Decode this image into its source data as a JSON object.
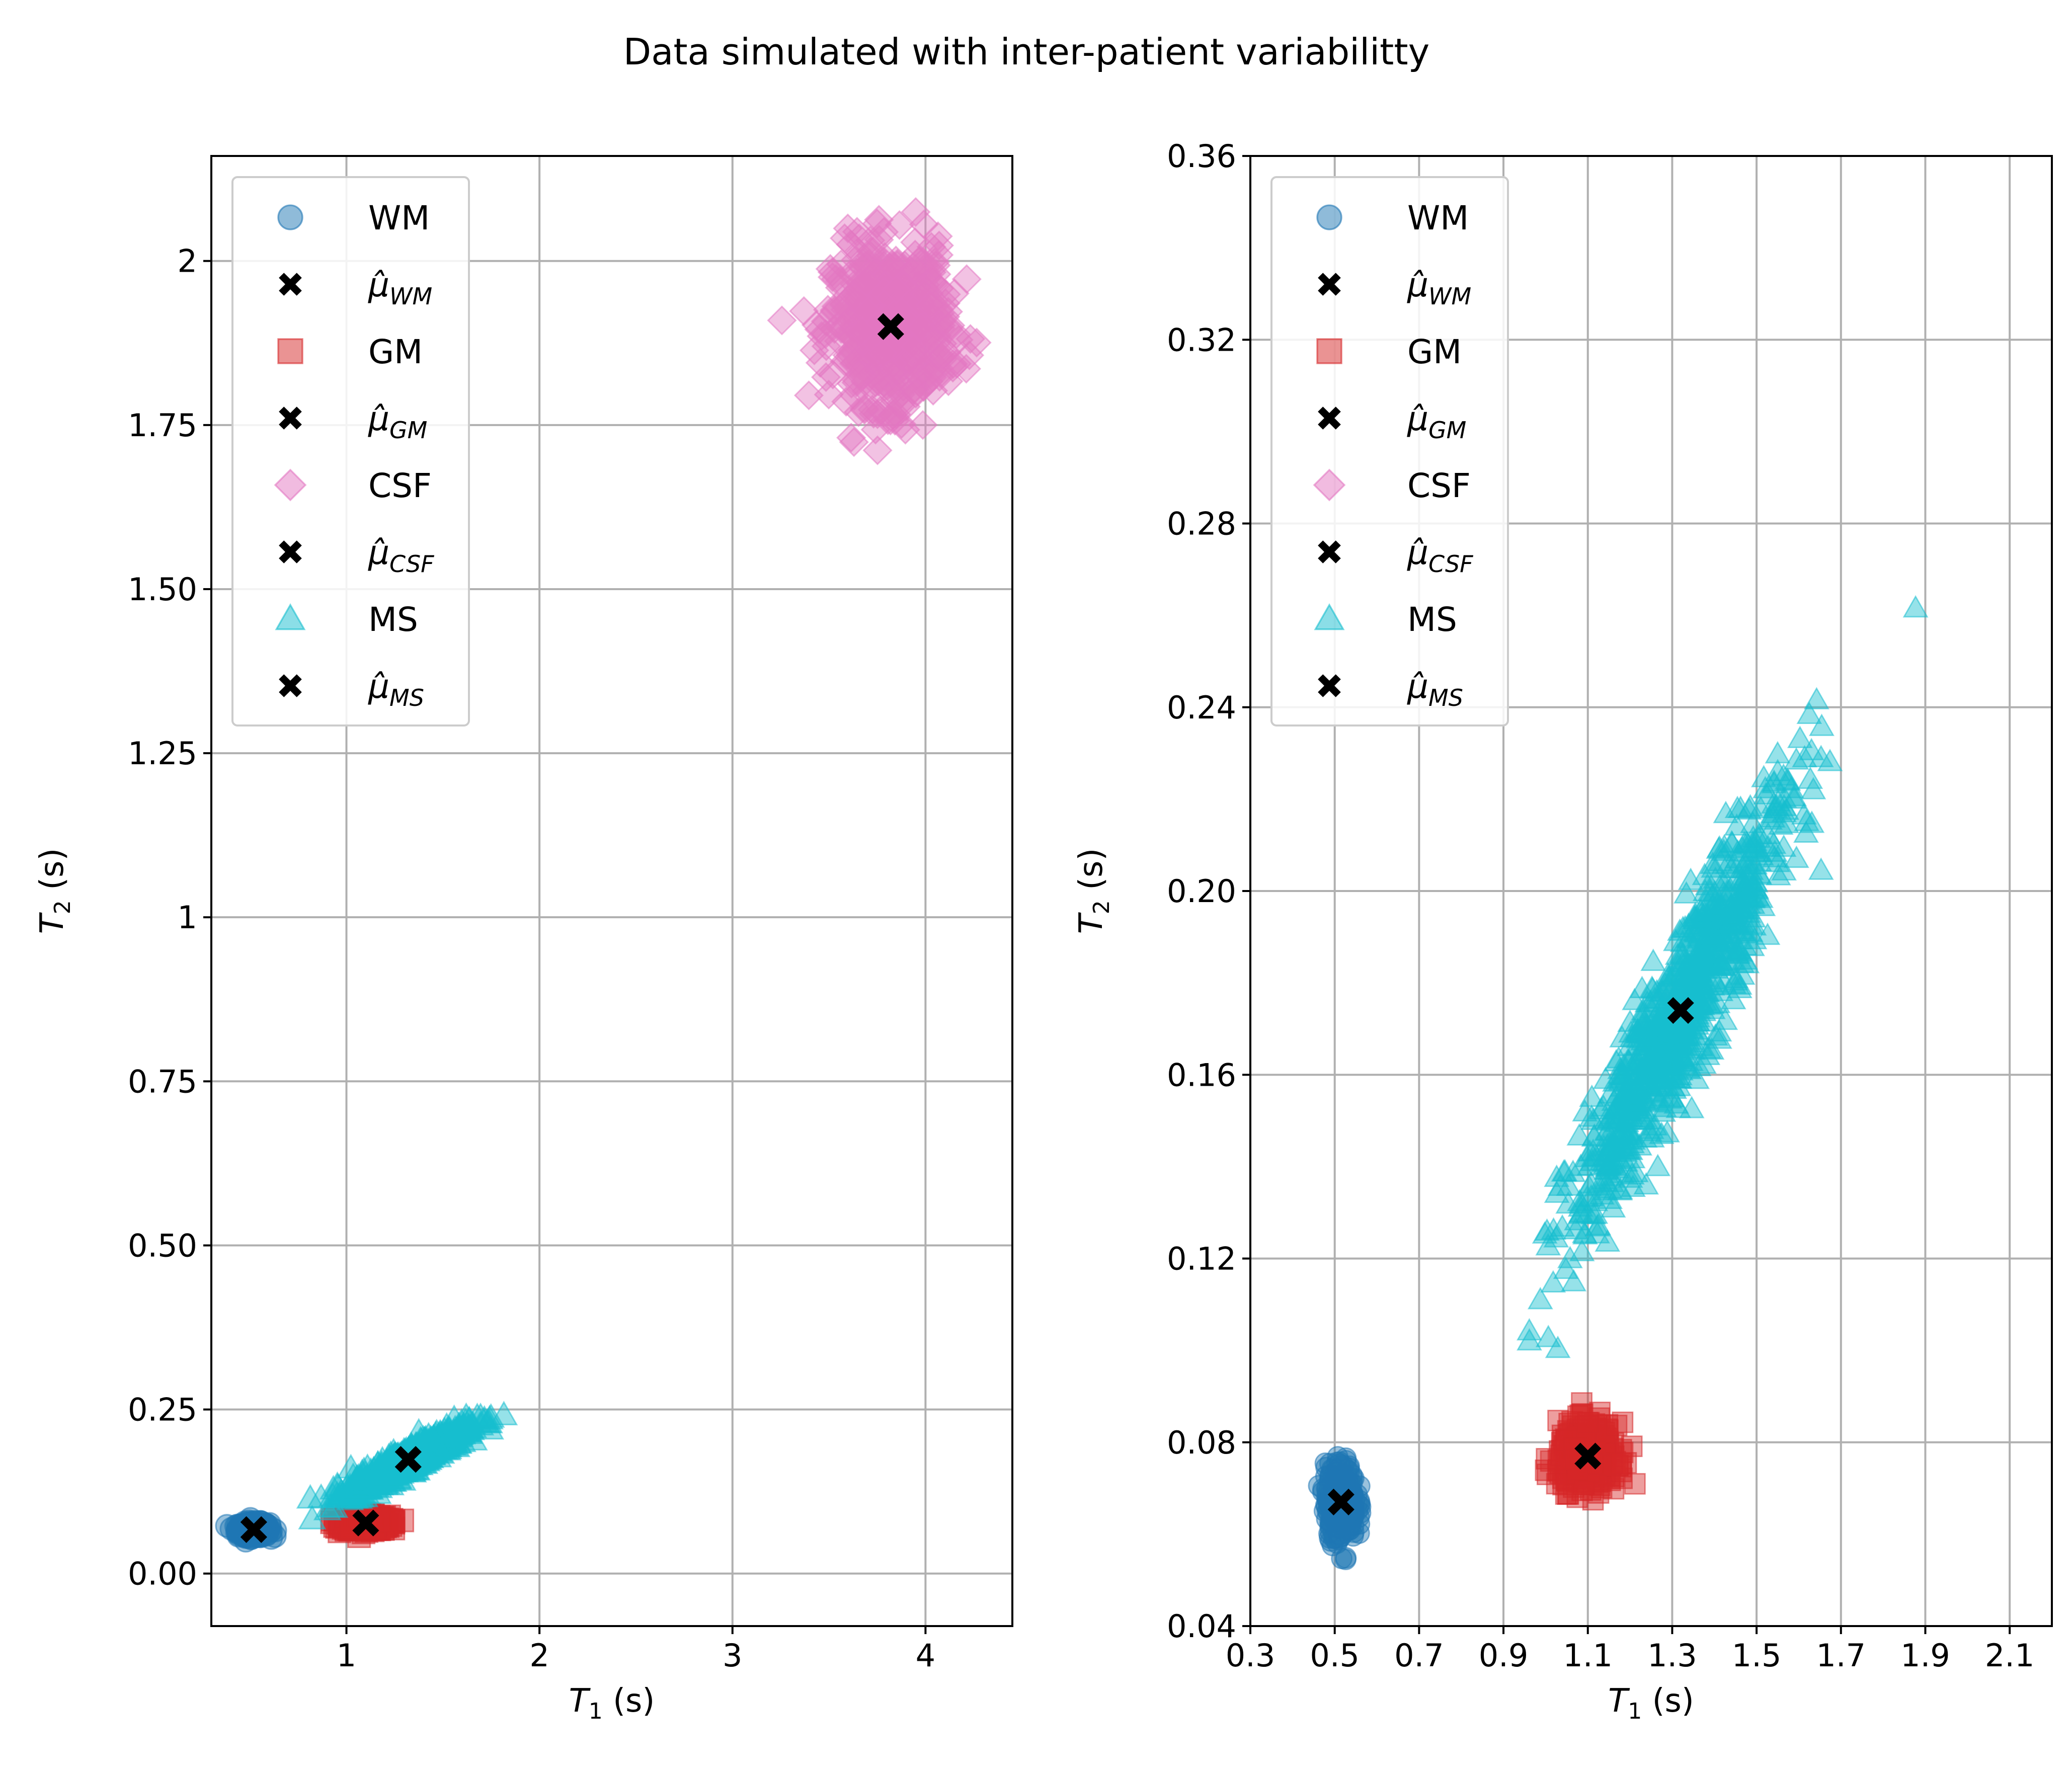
{
  "figure_title": "Data simulated with inter-patient variabilitty",
  "colors": {
    "WM": "#1f77b4",
    "GM": "#d62728",
    "CSF": "#e377c2",
    "MS": "#17becf",
    "mean": "#000000",
    "grid": "#b0b0b0"
  },
  "chart_data": [
    {
      "type": "scatter",
      "panel": "left",
      "title": "",
      "xlabel": "T1 (s)",
      "ylabel": "T2 (s)",
      "xlim": [
        0.3,
        4.45
      ],
      "ylim": [
        -0.08,
        2.16
      ],
      "xticks": [
        1,
        2,
        3,
        4
      ],
      "yticks": [
        0.0,
        0.25,
        0.5,
        0.75,
        1.0,
        1.25,
        1.5,
        1.75,
        2.0
      ],
      "grid": true,
      "legend_placement": "upper-left",
      "series": [
        {
          "name": "WM",
          "marker": "circle",
          "center": [
            0.52,
            0.067
          ],
          "spread": [
            0.04,
            0.005
          ],
          "corr": 0.0,
          "n": 400
        },
        {
          "name": "GM",
          "marker": "square",
          "center": [
            1.1,
            0.077
          ],
          "spread": [
            0.06,
            0.005
          ],
          "corr": 0.0,
          "n": 400
        },
        {
          "name": "CSF",
          "marker": "diamond",
          "center": [
            3.82,
            1.9
          ],
          "spread": [
            0.15,
            0.06
          ],
          "corr": 0.0,
          "n": 600
        },
        {
          "name": "MS",
          "marker": "triangle",
          "center": [
            1.32,
            0.174
          ],
          "spread": [
            0.15,
            0.025
          ],
          "corr": 0.93,
          "n": 900
        }
      ],
      "means": [
        {
          "name": "μ̂_WM",
          "x": 0.52,
          "y": 0.067
        },
        {
          "name": "μ̂_GM",
          "x": 1.1,
          "y": 0.077
        },
        {
          "name": "μ̂_CSF",
          "x": 3.82,
          "y": 1.9
        },
        {
          "name": "μ̂_MS",
          "x": 1.32,
          "y": 0.174
        }
      ],
      "legend": [
        {
          "label": "WM",
          "sub": "",
          "marker": "circle",
          "color": "#1f77b4"
        },
        {
          "label": "μ̂",
          "sub": "WM",
          "marker": "x",
          "color": "#000000"
        },
        {
          "label": "GM",
          "sub": "",
          "marker": "square",
          "color": "#d62728"
        },
        {
          "label": "μ̂",
          "sub": "GM",
          "marker": "x",
          "color": "#000000"
        },
        {
          "label": "CSF",
          "sub": "",
          "marker": "diamond",
          "color": "#e377c2"
        },
        {
          "label": "μ̂",
          "sub": "CSF",
          "marker": "x",
          "color": "#000000"
        },
        {
          "label": "MS",
          "sub": "",
          "marker": "triangle",
          "color": "#17becf"
        },
        {
          "label": "μ̂",
          "sub": "MS",
          "marker": "x",
          "color": "#000000"
        }
      ]
    },
    {
      "type": "scatter",
      "panel": "right",
      "title": "",
      "xlabel": "T1 (s)",
      "ylabel": "T2 (s)",
      "xlim": [
        0.3,
        2.2
      ],
      "ylim": [
        0.04,
        0.36
      ],
      "xticks": [
        0.3,
        0.5,
        0.7,
        0.9,
        1.1,
        1.3,
        1.5,
        1.7,
        1.9,
        2.1
      ],
      "yticks": [
        0.04,
        0.08,
        0.12,
        0.16,
        0.2,
        0.24,
        0.28,
        0.32,
        0.36
      ],
      "grid": true,
      "legend_placement": "upper-left",
      "series": [
        {
          "name": "WM",
          "marker": "circle",
          "center": [
            0.515,
            0.067
          ],
          "spread": [
            0.018,
            0.004
          ],
          "corr": 0.0,
          "n": 400
        },
        {
          "name": "GM",
          "marker": "square",
          "center": [
            1.1,
            0.077
          ],
          "spread": [
            0.035,
            0.0035
          ],
          "corr": 0.0,
          "n": 400
        },
        {
          "name": "CSF",
          "marker": "diamond",
          "center": [
            3.82,
            1.9
          ],
          "spread": [
            0.15,
            0.06
          ],
          "corr": 0.0,
          "n": 0
        },
        {
          "name": "MS",
          "marker": "triangle",
          "center": [
            1.32,
            0.174
          ],
          "spread": [
            0.13,
            0.024
          ],
          "corr": 0.93,
          "n": 900
        }
      ],
      "means": [
        {
          "name": "μ̂_WM",
          "x": 0.515,
          "y": 0.067
        },
        {
          "name": "μ̂_GM",
          "x": 1.1,
          "y": 0.077
        },
        {
          "name": "μ̂_MS",
          "x": 1.32,
          "y": 0.174
        }
      ],
      "legend": [
        {
          "label": "WM",
          "sub": "",
          "marker": "circle",
          "color": "#1f77b4"
        },
        {
          "label": "μ̂",
          "sub": "WM",
          "marker": "x",
          "color": "#000000"
        },
        {
          "label": "GM",
          "sub": "",
          "marker": "square",
          "color": "#d62728"
        },
        {
          "label": "μ̂",
          "sub": "GM",
          "marker": "x",
          "color": "#000000"
        },
        {
          "label": "CSF",
          "sub": "",
          "marker": "diamond",
          "color": "#e377c2"
        },
        {
          "label": "μ̂",
          "sub": "CSF",
          "marker": "x",
          "color": "#000000"
        },
        {
          "label": "MS",
          "sub": "",
          "marker": "triangle",
          "color": "#17becf"
        },
        {
          "label": "μ̂",
          "sub": "MS",
          "marker": "x",
          "color": "#000000"
        }
      ]
    }
  ]
}
